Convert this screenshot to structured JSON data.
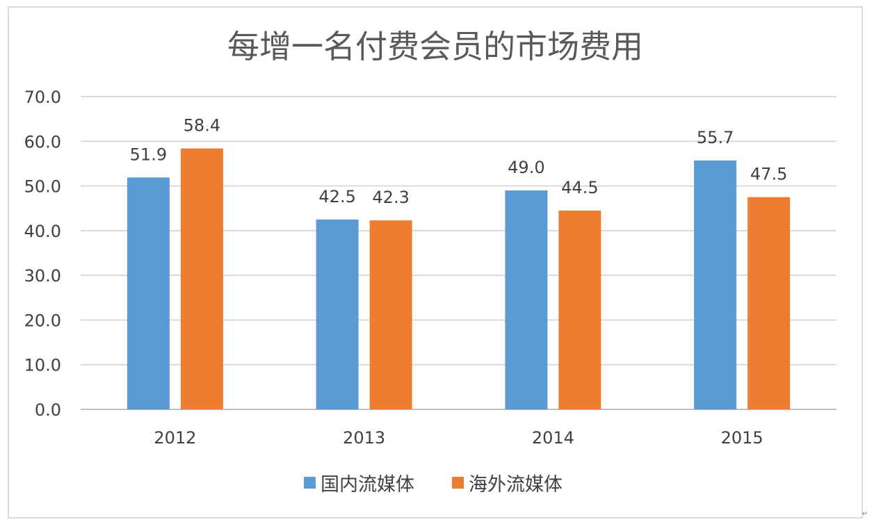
{
  "chart_data": {
    "type": "bar",
    "title": "每增一名付费会员的市场费用",
    "categories": [
      "2012",
      "2013",
      "2014",
      "2015"
    ],
    "series": [
      {
        "name": "国内流媒体",
        "color": "#5b9bd5",
        "values": [
          51.9,
          42.5,
          49.0,
          55.7
        ]
      },
      {
        "name": "海外流媒体",
        "color": "#ed7d31",
        "values": [
          58.4,
          42.3,
          44.5,
          47.5
        ]
      }
    ],
    "data_labels": [
      [
        "51.9",
        "42.5",
        "49.0",
        "55.7"
      ],
      [
        "58.4",
        "42.3",
        "44.5",
        "47.5"
      ]
    ],
    "y_ticks": [
      "0.0",
      "10.0",
      "20.0",
      "30.0",
      "40.0",
      "50.0",
      "60.0",
      "70.0"
    ],
    "ylim": [
      0,
      70
    ],
    "grid": true,
    "legend_position": "bottom",
    "xlabel": "",
    "ylabel": ""
  }
}
